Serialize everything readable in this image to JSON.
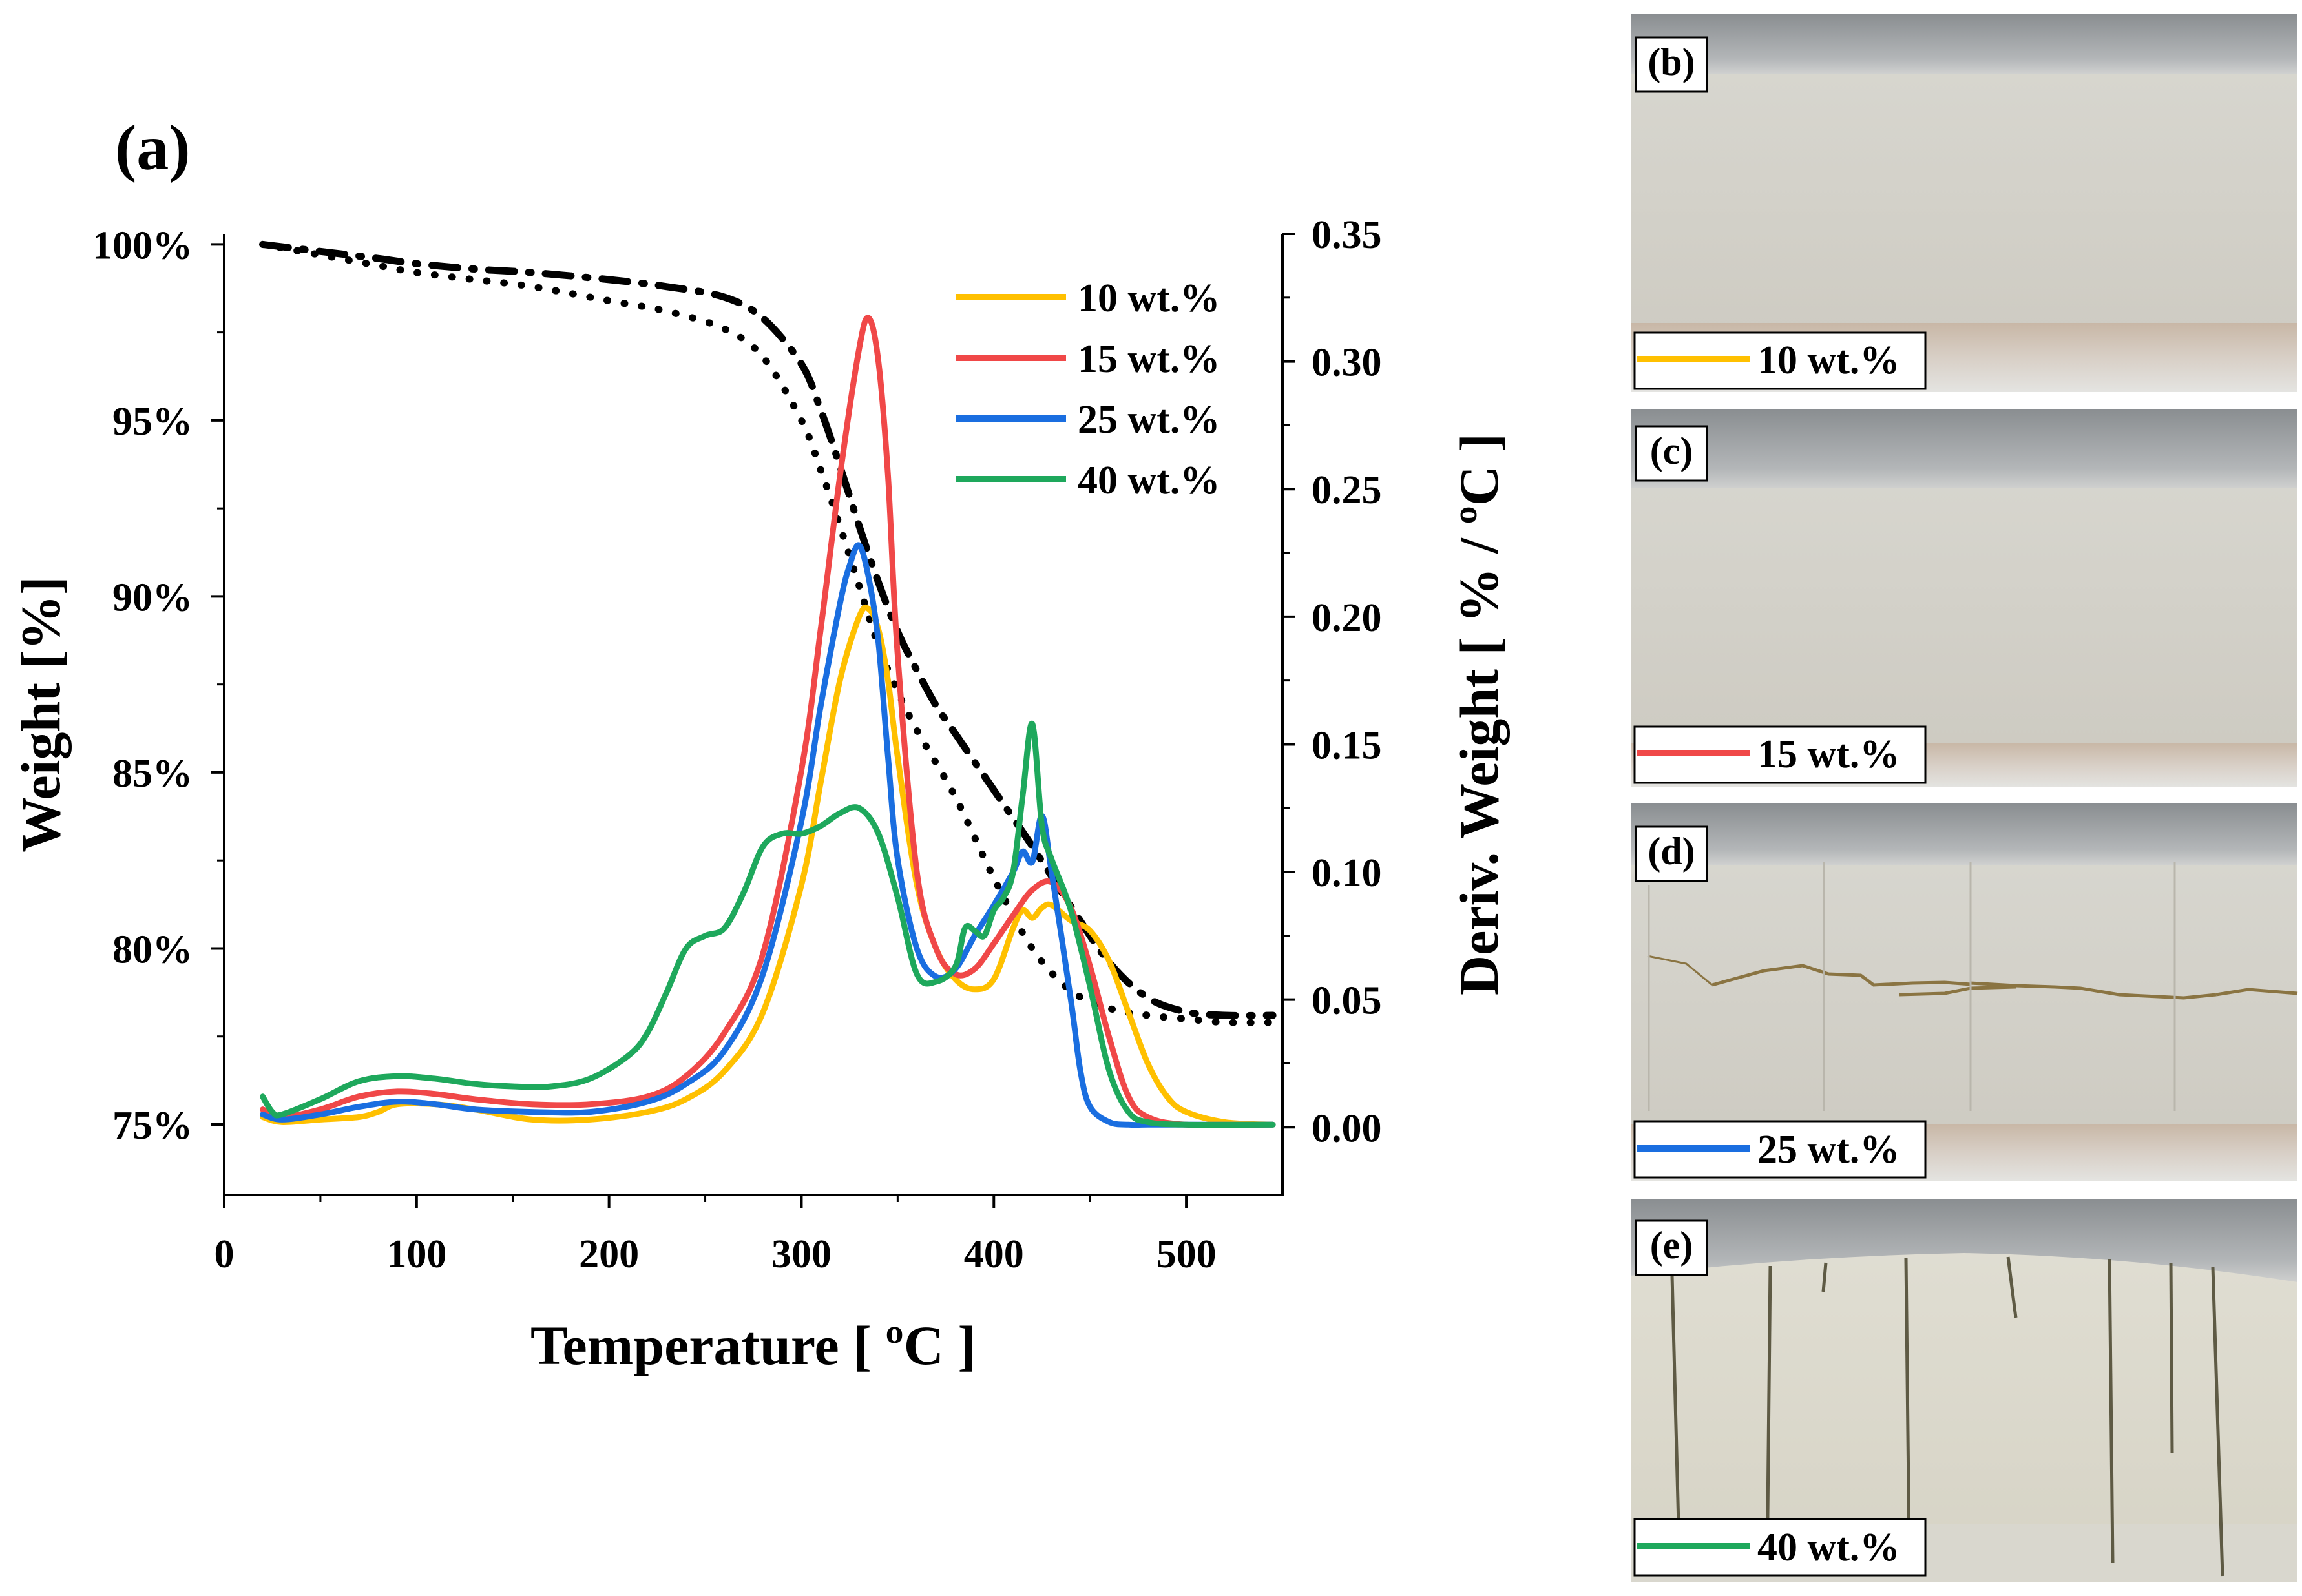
{
  "chart_data": {
    "type": "line",
    "panel_label": "(a)",
    "xlabel": "Temperature [ ºC ]",
    "ylabel_left": "Weight [%]",
    "ylabel_right": "Deriv. Weight [ % / ºC ]",
    "xlim": [
      0,
      550
    ],
    "ylim_left": [
      73,
      100.3
    ],
    "ylim_right": [
      -0.0265,
      0.35
    ],
    "x_ticks": [
      0,
      100,
      200,
      300,
      400,
      500
    ],
    "x_tick_labels": [
      "0",
      "100",
      "200",
      "300",
      "400",
      "500"
    ],
    "y_left_ticks": [
      75,
      80,
      85,
      90,
      95,
      100
    ],
    "y_left_tick_labels": [
      "75%",
      "80%",
      "85%",
      "90%",
      "95%",
      "100%"
    ],
    "y_right_ticks": [
      0,
      0.05,
      0.1,
      0.15,
      0.2,
      0.25,
      0.3,
      0.35
    ],
    "y_right_tick_labels": [
      "0.00",
      "0.05",
      "0.10",
      "0.15",
      "0.20",
      "0.25",
      "0.30",
      "0.35"
    ],
    "legend_position": "top-right",
    "weight_series": [
      {
        "name": "weight-dashdot",
        "style": "dashdot",
        "color": "#000000",
        "x": [
          20,
          50,
          80,
          100,
          130,
          160,
          200,
          230,
          260,
          280,
          300,
          310,
          320,
          330,
          340,
          350,
          360,
          370,
          380,
          400,
          420,
          440,
          460,
          480,
          500,
          520,
          545
        ],
        "y": [
          100.0,
          99.8,
          99.6,
          99.45,
          99.3,
          99.2,
          99.0,
          98.8,
          98.5,
          97.9,
          96.6,
          95.3,
          93.7,
          92.0,
          90.4,
          89.0,
          87.9,
          86.9,
          86.1,
          84.5,
          82.9,
          81.2,
          79.6,
          78.6,
          78.2,
          78.1,
          78.1
        ]
      },
      {
        "name": "weight-dotted",
        "style": "dotted",
        "color": "#000000",
        "x": [
          20,
          50,
          80,
          100,
          130,
          160,
          200,
          230,
          260,
          280,
          300,
          310,
          320,
          330,
          340,
          350,
          360,
          380,
          400,
          420,
          440,
          460,
          480,
          500,
          520,
          545
        ],
        "y": [
          100.0,
          99.7,
          99.4,
          99.2,
          99.0,
          98.8,
          98.4,
          98.1,
          97.6,
          96.8,
          95.0,
          93.6,
          92.0,
          90.3,
          88.6,
          87.3,
          86.2,
          84.3,
          82.0,
          80.0,
          78.8,
          78.3,
          78.1,
          78.0,
          77.9,
          77.9
        ]
      }
    ],
    "derivative_series": [
      {
        "name": "10 wt.%",
        "color": "#ffc000",
        "x": [
          20,
          30,
          50,
          70,
          80,
          90,
          110,
          130,
          160,
          190,
          220,
          240,
          260,
          280,
          300,
          310,
          320,
          330,
          335,
          340,
          345,
          350,
          360,
          370,
          380,
          390,
          400,
          410,
          415,
          420,
          425,
          430,
          440,
          450,
          460,
          470,
          480,
          490,
          500,
          520,
          545
        ],
        "y": [
          0.004,
          0.002,
          0.003,
          0.004,
          0.006,
          0.009,
          0.009,
          0.007,
          0.003,
          0.003,
          0.006,
          0.011,
          0.022,
          0.045,
          0.095,
          0.135,
          0.175,
          0.2,
          0.203,
          0.195,
          0.175,
          0.145,
          0.095,
          0.07,
          0.058,
          0.054,
          0.058,
          0.078,
          0.085,
          0.082,
          0.086,
          0.087,
          0.081,
          0.077,
          0.065,
          0.045,
          0.025,
          0.012,
          0.006,
          0.002,
          0.001
        ]
      },
      {
        "name": "15 wt.%",
        "color": "#f04848",
        "x": [
          20,
          30,
          50,
          70,
          90,
          110,
          130,
          160,
          190,
          220,
          240,
          260,
          280,
          300,
          310,
          320,
          330,
          335,
          340,
          345,
          350,
          360,
          370,
          380,
          390,
          400,
          410,
          420,
          430,
          440,
          450,
          460,
          470,
          480,
          500,
          545
        ],
        "y": [
          0.007,
          0.004,
          0.007,
          0.012,
          0.014,
          0.013,
          0.011,
          0.009,
          0.009,
          0.012,
          0.02,
          0.037,
          0.068,
          0.14,
          0.195,
          0.255,
          0.305,
          0.317,
          0.3,
          0.255,
          0.185,
          0.1,
          0.07,
          0.06,
          0.062,
          0.072,
          0.083,
          0.093,
          0.096,
          0.086,
          0.063,
          0.035,
          0.012,
          0.004,
          0.001,
          0.001
        ]
      },
      {
        "name": "25 wt.%",
        "color": "#1a6ee0",
        "x": [
          20,
          30,
          50,
          70,
          90,
          110,
          130,
          160,
          190,
          220,
          240,
          260,
          280,
          300,
          310,
          320,
          325,
          330,
          335,
          340,
          345,
          350,
          360,
          370,
          380,
          390,
          400,
          410,
          415,
          420,
          425,
          430,
          440,
          445,
          450,
          460,
          470,
          480,
          500,
          545
        ],
        "y": [
          0.005,
          0.003,
          0.005,
          0.008,
          0.01,
          0.009,
          0.007,
          0.006,
          0.006,
          0.01,
          0.017,
          0.03,
          0.06,
          0.12,
          0.165,
          0.205,
          0.22,
          0.228,
          0.215,
          0.19,
          0.145,
          0.105,
          0.07,
          0.059,
          0.062,
          0.075,
          0.087,
          0.1,
          0.108,
          0.104,
          0.122,
          0.1,
          0.05,
          0.022,
          0.008,
          0.002,
          0.001,
          0.001,
          0.001,
          0.001
        ]
      },
      {
        "name": "40 wt.%",
        "color": "#1ea85c",
        "x": [
          20,
          25,
          30,
          50,
          70,
          90,
          110,
          130,
          150,
          170,
          190,
          210,
          220,
          230,
          240,
          250,
          260,
          270,
          280,
          290,
          300,
          310,
          320,
          330,
          340,
          350,
          360,
          370,
          380,
          385,
          390,
          395,
          400,
          405,
          410,
          415,
          420,
          425,
          430,
          440,
          450,
          460,
          470,
          480,
          500,
          545
        ],
        "y": [
          0.012,
          0.006,
          0.005,
          0.011,
          0.018,
          0.02,
          0.019,
          0.017,
          0.016,
          0.016,
          0.019,
          0.028,
          0.037,
          0.053,
          0.07,
          0.075,
          0.078,
          0.092,
          0.11,
          0.115,
          0.115,
          0.118,
          0.123,
          0.125,
          0.115,
          0.09,
          0.06,
          0.057,
          0.063,
          0.078,
          0.077,
          0.075,
          0.085,
          0.09,
          0.1,
          0.13,
          0.158,
          0.118,
          0.105,
          0.085,
          0.055,
          0.022,
          0.006,
          0.002,
          0.001,
          0.001
        ]
      }
    ]
  },
  "photos": [
    {
      "label": "(b)",
      "legend": "10 wt.%",
      "color": "#ffc000",
      "cracks": "none"
    },
    {
      "label": "(c)",
      "legend": "15 wt.%",
      "color": "#f04848",
      "cracks": "none"
    },
    {
      "label": "(d)",
      "legend": "25 wt.%",
      "color": "#1a6ee0",
      "cracks": "horizontal"
    },
    {
      "label": "(e)",
      "legend": "40 wt.%",
      "color": "#1ea85c",
      "cracks": "vertical"
    }
  ]
}
